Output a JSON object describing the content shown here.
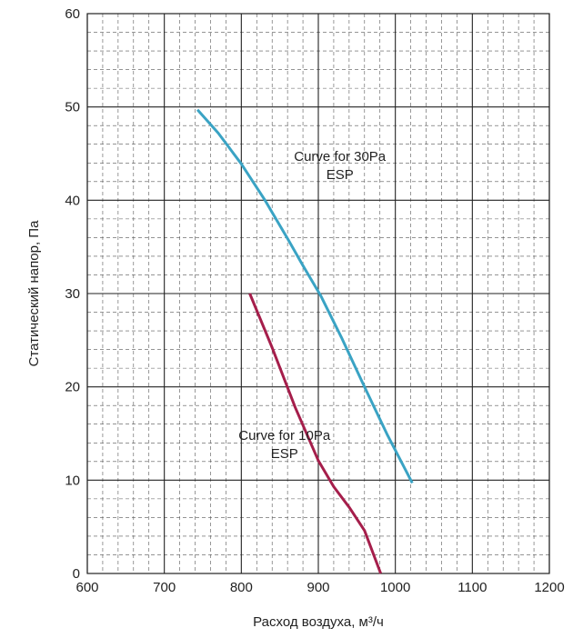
{
  "chart_data": {
    "type": "line",
    "title": "",
    "xlabel": "Расход воздуха, м³/ч",
    "ylabel": "Статический напор, Па",
    "xlim": [
      600,
      1200
    ],
    "ylim": [
      0,
      60
    ],
    "x_ticks": [
      600,
      700,
      800,
      900,
      1000,
      1100,
      1200
    ],
    "y_ticks": [
      0,
      10,
      20,
      30,
      40,
      50,
      60
    ],
    "x_tick_labels": [
      "600",
      "700",
      "800",
      "900",
      "1000",
      "1100",
      "1200"
    ],
    "y_tick_labels": [
      "0",
      "10",
      "20",
      "30",
      "40",
      "50",
      "60"
    ],
    "grid": {
      "major": true,
      "minor_dashed": true,
      "x_minor_step": 20,
      "y_minor_step": 2
    },
    "legend": "none",
    "series": [
      {
        "color": "#3aa3c4",
        "annotation": [
          "Curve for 30Pa",
          "ESP"
        ],
        "x": [
          743,
          770,
          800,
          830,
          860,
          880,
          903,
          930,
          960,
          990,
          1022
        ],
        "y": [
          49.7,
          47.2,
          43.9,
          40.1,
          35.9,
          33.0,
          29.8,
          25.3,
          20.0,
          14.8,
          9.7
        ]
      },
      {
        "color": "#a51e4b",
        "annotation": [
          "Curve for 10Pa",
          "ESP"
        ],
        "x": [
          811,
          840,
          870,
          900,
          920,
          940,
          960,
          981
        ],
        "y": [
          30.0,
          24.2,
          17.8,
          12.1,
          9.3,
          7.1,
          4.6,
          0.0
        ]
      }
    ]
  }
}
